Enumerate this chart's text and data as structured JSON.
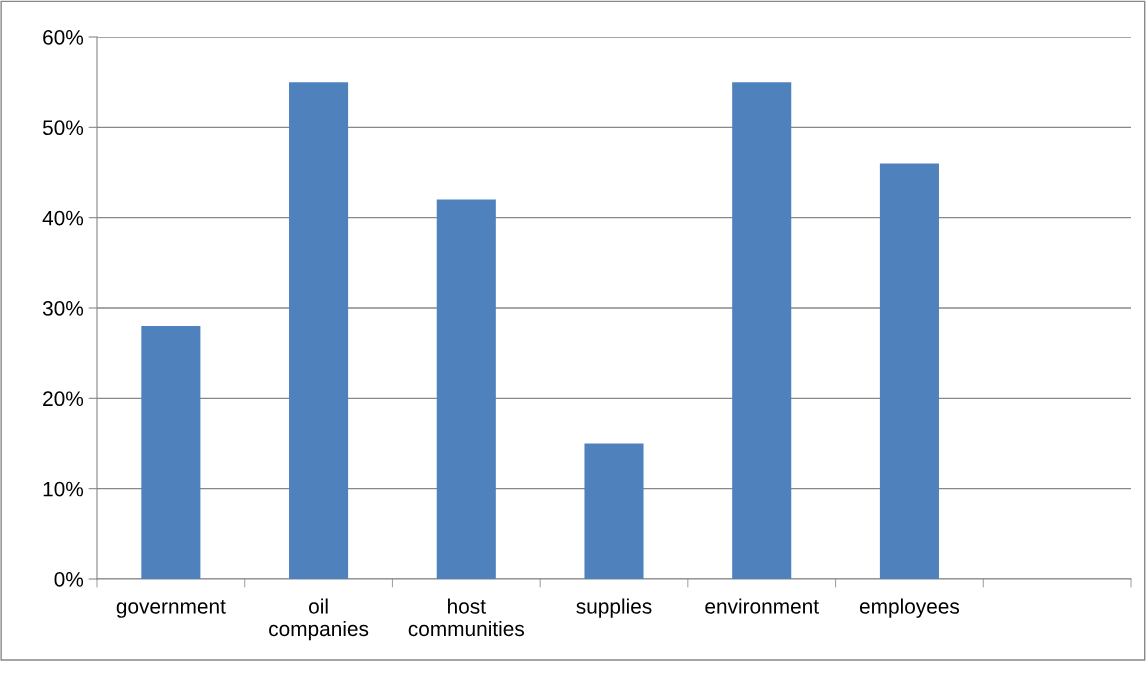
{
  "chart_data": {
    "type": "bar",
    "categories": [
      "government",
      "oil\ncompanies",
      "host\ncommunities",
      "supplies",
      "environment",
      "employees",
      null
    ],
    "values": [
      28,
      55,
      42,
      15,
      55,
      46,
      null
    ],
    "color": "#4f81bd",
    "ylim": [
      0,
      60
    ],
    "yticks": [
      {
        "value": 0,
        "label": "0%"
      },
      {
        "value": 10,
        "label": "10%"
      },
      {
        "value": 20,
        "label": "20%"
      },
      {
        "value": 30,
        "label": "30%"
      },
      {
        "value": 40,
        "label": "40%"
      },
      {
        "value": 50,
        "label": "50%"
      },
      {
        "value": 60,
        "label": "60%"
      }
    ],
    "grid": "y"
  }
}
